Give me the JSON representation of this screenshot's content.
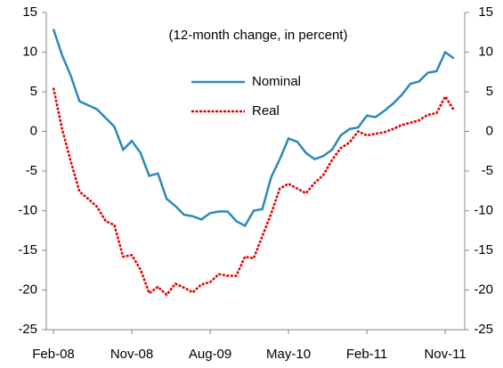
{
  "chart_data": {
    "type": "line",
    "annotation": "(12-month change, in percent)",
    "categories": [
      "Feb-08",
      null,
      null,
      null,
      null,
      null,
      null,
      null,
      null,
      "Nov-08",
      null,
      null,
      null,
      null,
      null,
      null,
      null,
      null,
      "Aug-09",
      null,
      null,
      null,
      null,
      null,
      null,
      null,
      null,
      "May-10",
      null,
      null,
      null,
      null,
      null,
      null,
      null,
      null,
      "Feb-11",
      null,
      null,
      null,
      null,
      null,
      null,
      null,
      null,
      "Nov-11",
      null
    ],
    "series": [
      {
        "name": "Nominal",
        "color": "#2a8ab8",
        "dashed": false,
        "values": [
          12.9,
          9.6,
          7.0,
          3.8,
          3.3,
          2.8,
          1.7,
          0.6,
          -2.3,
          -1.2,
          -2.7,
          -5.6,
          -5.3,
          -8.5,
          -9.4,
          -10.5,
          -10.7,
          -11.1,
          -10.3,
          -10.1,
          -10.1,
          -11.3,
          -11.9,
          -10.0,
          -9.8,
          -5.8,
          -3.5,
          -0.9,
          -1.3,
          -2.7,
          -3.5,
          -3.1,
          -2.3,
          -0.5,
          0.3,
          0.5,
          2.0,
          1.8,
          2.6,
          3.5,
          4.6,
          6.0,
          6.3,
          7.4,
          7.6,
          10.0,
          9.2
        ]
      },
      {
        "name": "Real",
        "color": "#e00000",
        "dashed": true,
        "values": [
          5.5,
          0.3,
          -3.8,
          -7.6,
          -8.5,
          -9.5,
          -11.3,
          -11.8,
          -15.8,
          -15.6,
          -17.4,
          -20.4,
          -19.6,
          -20.6,
          -19.2,
          -19.7,
          -20.3,
          -19.3,
          -19.0,
          -18.0,
          -18.2,
          -18.2,
          -15.8,
          -16.0,
          -13.2,
          -10.4,
          -7.2,
          -6.6,
          -7.2,
          -7.8,
          -6.5,
          -5.5,
          -3.6,
          -2.1,
          -1.4,
          0.0,
          -0.5,
          -0.3,
          -0.1,
          0.3,
          0.8,
          1.1,
          1.4,
          2.1,
          2.3,
          4.4,
          2.7
        ]
      }
    ],
    "ylim": [
      -25,
      15
    ],
    "yticks": [
      -25,
      -20,
      -15,
      -10,
      -5,
      0,
      5,
      10,
      15
    ],
    "y2lim": [
      -25,
      15
    ],
    "y2ticks": [
      -25,
      -20,
      -15,
      -10,
      -5,
      0,
      5,
      10,
      15
    ],
    "grid": false
  }
}
